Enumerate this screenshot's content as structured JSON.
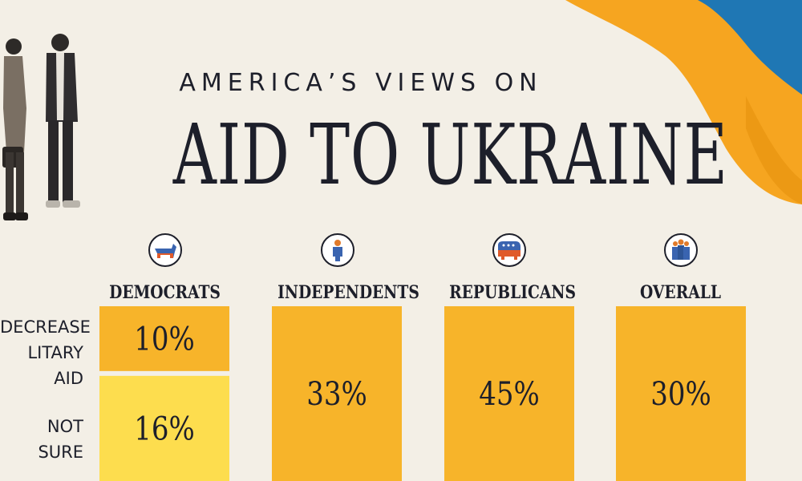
{
  "title": {
    "kicker": "AMERICA’S VIEWS ON",
    "main": "AID TO UKRAINE"
  },
  "row_labels": {
    "decrease": "DECREASE\nLITARY AID",
    "not_sure": "NOT\nSURE"
  },
  "groups": [
    {
      "label": "DEMOCRATS",
      "icon": "donkey-icon"
    },
    {
      "label": "INDEPENDENTS",
      "icon": "person-icon"
    },
    {
      "label": "REPUBLICANS",
      "icon": "elephant-icon"
    },
    {
      "label": "OVERALL",
      "icon": "group-icon"
    }
  ],
  "colors": {
    "background": "#f3efe6",
    "decrease": "#f7b42a",
    "not_sure": "#fddd4e",
    "text": "#1d1f2a",
    "flag_blue": "#1f77b4",
    "flag_yellow": "#f6a520"
  },
  "chart_data": {
    "type": "bar",
    "categories": [
      "DEMOCRATS",
      "INDEPENDENTS",
      "REPUBLICANS",
      "OVERALL"
    ],
    "series": [
      {
        "name": "DECREASE MILITARY AID",
        "values": [
          10,
          33,
          45,
          30
        ],
        "labels": [
          "10%",
          "33%",
          "45%",
          "30%"
        ]
      },
      {
        "name": "NOT SURE",
        "values": [
          16,
          null,
          null,
          null
        ],
        "labels": [
          "16%",
          "",
          "",
          ""
        ]
      }
    ]
  }
}
